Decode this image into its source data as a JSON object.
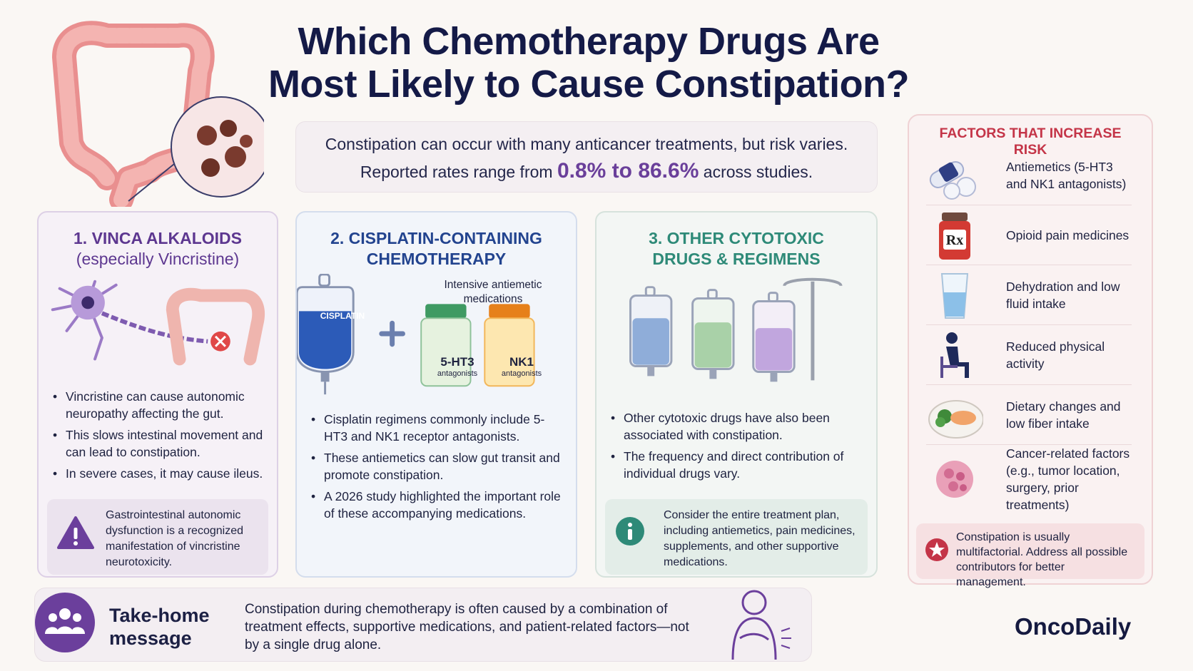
{
  "header": {
    "title_line1": "Which Chemotherapy Drugs Are",
    "title_line2": "Most Likely to Cause Constipation?"
  },
  "intro": {
    "line1": "Constipation can occur with many anticancer treatments, but risk varies.",
    "line2_prefix": "Reported rates range from",
    "line2_highlight": "0.8% to 86.6%",
    "line2_suffix": "across studies."
  },
  "cards": [
    {
      "title": "1. VINCA ALKALOIDS",
      "subtitle": "(especially Vincristine)",
      "bullets": [
        "Vincristine can cause autonomic neuropathy affecting the gut.",
        "This slows intestinal movement and can lead to constipation.",
        "In severe cases, it may cause ileus."
      ],
      "note": "Gastrointestinal autonomic dysfunction is a recognized manifestation of vincristine neurotoxicity."
    },
    {
      "title_line1": "2. CISPLATIN-CONTAINING",
      "title_line2": "CHEMOTHERAPY",
      "bag_label": "CISPLATIN",
      "bottles_caption_line1": "Intensive antiemetic",
      "bottles_caption_line2": "medications",
      "bottle1": {
        "name": "5-HT3",
        "sub": "antagonists"
      },
      "bottle2": {
        "name": "NK1",
        "sub": "antagonists"
      },
      "bullets": [
        "Cisplatin regimens commonly include 5-HT3 and NK1 receptor antagonists.",
        "These antiemetics can slow gut transit and promote constipation.",
        "A 2026 study highlighted the important role of these accompanying medications."
      ]
    },
    {
      "title_line1": "3. OTHER CYTOTOXIC",
      "title_line2": "DRUGS & REGIMENS",
      "bullets": [
        "Other cytotoxic drugs have also been associated with constipation.",
        "The frequency and direct contribution of individual drugs vary."
      ],
      "note": "Consider the entire treatment plan, including antiemetics, pain medicines, supplements, and other supportive medications."
    }
  ],
  "risk": {
    "title": "FACTORS THAT INCREASE RISK",
    "items": [
      {
        "icon": "pills-icon",
        "label": "Antiemetics (5-HT3 and NK1 antagonists)"
      },
      {
        "icon": "rx-bottle-icon",
        "label": "Opioid pain medicines"
      },
      {
        "icon": "water-glass-icon",
        "label": "Dehydration and low fluid intake"
      },
      {
        "icon": "seated-person-icon",
        "label": "Reduced physical activity"
      },
      {
        "icon": "food-plate-icon",
        "label": "Dietary changes and low fiber intake"
      },
      {
        "icon": "tumor-cell-icon",
        "label": "Cancer-related factors (e.g., tumor location, surgery, prior treatments)"
      }
    ],
    "footer": "Constipation is usually multifactorial. Address all possible contributors for better management."
  },
  "takehome": {
    "label_line1": "Take-home",
    "label_line2": "message",
    "text": "Constipation during chemotherapy is often caused by a combination of treatment effects, supportive medications, and patient-related factors—not by a single drug alone."
  },
  "brand": "OncoDaily",
  "colors": {
    "navy": "#141a47",
    "purple": "#6b3f9c",
    "blue": "#23448f",
    "teal": "#2e8a78",
    "red": "#c43548"
  }
}
